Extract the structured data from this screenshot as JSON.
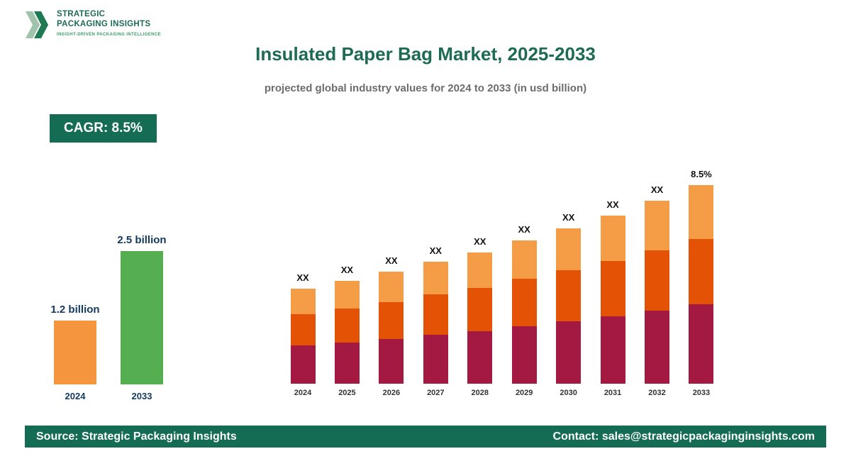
{
  "colors": {
    "brand_green": "#156c55",
    "title_green": "#1d6a55",
    "subtitle_gray": "#6d6d6d",
    "label_navy": "#14395f",
    "maroon": "#a31942",
    "dark_orange": "#e35205",
    "light_orange": "#f59c47",
    "mini_orange": "#f5953e",
    "mini_green": "#55ae4f",
    "logo_light_green": "#9fc3ad",
    "logo_dark_green": "#1e7a52"
  },
  "logo": {
    "line1": "STRATEGIC",
    "line2": "PACKAGING INSIGHTS",
    "tagline": "INSIGHT-DRIVEN PACKAGING INTELLIGENCE"
  },
  "header": {
    "title": "Insulated Paper Bag Market, 2025-2033",
    "subtitle": "projected global industry values for 2024 to 2033 (in usd billion)"
  },
  "cagr": {
    "label": "CAGR: 8.5%"
  },
  "footer": {
    "source": "Source: Strategic Packaging Insights",
    "contact": "Contact: sales@strategicpackaginginsights.com"
  },
  "chart_data": [
    {
      "type": "bar",
      "name": "summary-growth",
      "title": "",
      "unit": "usd billion",
      "categories": [
        "2024",
        "2033"
      ],
      "values": [
        1.2,
        2.5
      ],
      "value_labels": [
        "1.2 billion",
        "2.5 billion"
      ],
      "bar_colors": [
        "#f5953e",
        "#55ae4f"
      ],
      "ylim": [
        0,
        2.5
      ],
      "grid": false,
      "legend": false
    },
    {
      "type": "bar",
      "name": "projection-stacked",
      "stacked": true,
      "unit": "usd billion",
      "categories": [
        "2024",
        "2025",
        "2026",
        "2027",
        "2028",
        "2029",
        "2030",
        "2031",
        "2032",
        "2033"
      ],
      "totals_estimated": [
        1.2,
        1.3,
        1.41,
        1.53,
        1.66,
        1.8,
        1.96,
        2.12,
        2.3,
        2.5
      ],
      "bar_labels": [
        "XX",
        "XX",
        "XX",
        "XX",
        "XX",
        "XX",
        "XX",
        "XX",
        "XX",
        "8.5%"
      ],
      "cagr": "8.5%",
      "segment_shares_bottom_to_top": [
        0.4,
        0.33,
        0.27
      ],
      "segment_colors_bottom_to_top": [
        "#a31942",
        "#e35205",
        "#f59c47"
      ],
      "ylim": [
        0,
        2.5
      ],
      "grid": false,
      "legend": false
    }
  ]
}
